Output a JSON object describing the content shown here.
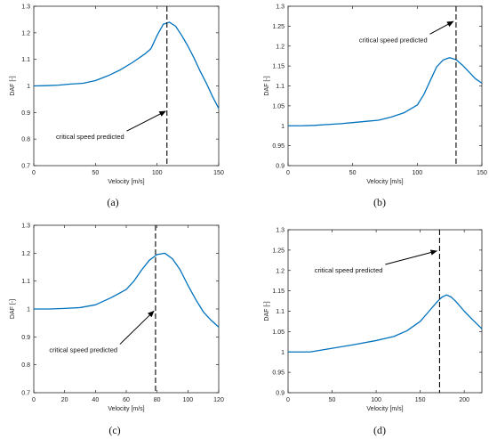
{
  "chart_data": [
    {
      "type": "line",
      "panel_label": "(a)",
      "xlabel": "Velocity [m/s]",
      "ylabel": "DAF [-]",
      "xlim": [
        0,
        150
      ],
      "ylim": [
        0.7,
        1.3
      ],
      "xticks": [
        0,
        50,
        100,
        150
      ],
      "yticks": [
        0.7,
        0.8,
        0.9,
        1.0,
        1.1,
        1.2,
        1.3
      ],
      "ytick_labels": [
        "0.7",
        "0.8",
        "0.9",
        "1",
        "1.1",
        "1.2",
        "1.3"
      ],
      "x": [
        0,
        10,
        20,
        30,
        40,
        50,
        60,
        70,
        80,
        90,
        95,
        100,
        105,
        110,
        115,
        120,
        125,
        130,
        135,
        140,
        145,
        150
      ],
      "y": [
        1.0,
        1.001,
        1.003,
        1.007,
        1.01,
        1.02,
        1.038,
        1.06,
        1.088,
        1.12,
        1.14,
        1.19,
        1.232,
        1.24,
        1.225,
        1.19,
        1.15,
        1.105,
        1.055,
        1.01,
        0.96,
        0.915
      ],
      "critical_speed": 108,
      "annotation": {
        "text": "critical speed predicted",
        "text_x": 18,
        "text_y": 0.8,
        "tip_x": 107,
        "tip_y": 0.905
      }
    },
    {
      "type": "line",
      "panel_label": "(b)",
      "xlabel": "Velocity [m/s]",
      "ylabel": "DAF [-]",
      "xlim": [
        0,
        150
      ],
      "ylim": [
        0.9,
        1.3
      ],
      "xticks": [
        0,
        50,
        100,
        150
      ],
      "yticks": [
        0.9,
        0.95,
        1.0,
        1.05,
        1.1,
        1.15,
        1.2,
        1.25,
        1.3
      ],
      "ytick_labels": [
        "0.9",
        "0.95",
        "1",
        "1.05",
        "1.1",
        "1.15",
        "1.2",
        "1.25",
        "1.3"
      ],
      "x": [
        0,
        10,
        20,
        30,
        40,
        50,
        60,
        70,
        80,
        90,
        100,
        105,
        110,
        115,
        120,
        125,
        130,
        135,
        140,
        145,
        150
      ],
      "y": [
        1.0,
        1.0,
        1.001,
        1.003,
        1.005,
        1.008,
        1.011,
        1.014,
        1.022,
        1.033,
        1.052,
        1.078,
        1.113,
        1.148,
        1.165,
        1.171,
        1.166,
        1.152,
        1.135,
        1.118,
        1.107
      ],
      "critical_speed": 130,
      "annotation": {
        "text": "critical speed predicted",
        "text_x": 55,
        "text_y": 1.21,
        "tip_x": 128,
        "tip_y": 1.262
      }
    },
    {
      "type": "line",
      "panel_label": "(c)",
      "xlabel": "Velocity [m/s]",
      "ylabel": "DAF [-]",
      "xlim": [
        0,
        120
      ],
      "ylim": [
        0.7,
        1.3
      ],
      "xticks": [
        0,
        20,
        40,
        60,
        80,
        100,
        120
      ],
      "yticks": [
        0.7,
        0.8,
        0.9,
        1.0,
        1.1,
        1.2,
        1.3
      ],
      "ytick_labels": [
        "0.7",
        "0.8",
        "0.9",
        "1",
        "1.1",
        "1.2",
        "1.3"
      ],
      "x": [
        0,
        10,
        20,
        30,
        40,
        50,
        60,
        65,
        70,
        75,
        80,
        85,
        90,
        95,
        100,
        105,
        110,
        115,
        120
      ],
      "y": [
        1.0,
        1.0,
        1.002,
        1.005,
        1.015,
        1.04,
        1.07,
        1.1,
        1.14,
        1.175,
        1.195,
        1.2,
        1.18,
        1.14,
        1.085,
        1.035,
        0.99,
        0.96,
        0.935
      ],
      "critical_speed": 79,
      "annotation": {
        "text": "critical speed predicted",
        "text_x": 10,
        "text_y": 0.845,
        "tip_x": 78,
        "tip_y": 0.993
      }
    },
    {
      "type": "line",
      "panel_label": "(d)",
      "xlabel": "Velocity [m/s]",
      "ylabel": "DAF [-]",
      "xlim": [
        0,
        220
      ],
      "ylim": [
        0.9,
        1.3
      ],
      "xticks": [
        0,
        50,
        100,
        150,
        200
      ],
      "yticks": [
        0.9,
        0.95,
        1.0,
        1.05,
        1.1,
        1.15,
        1.2,
        1.25,
        1.3
      ],
      "ytick_labels": [
        "0.9",
        "0.95",
        "1",
        "1.05",
        "1.1",
        "1.15",
        "1.2",
        "1.25",
        "1.3"
      ],
      "x": [
        0,
        25,
        50,
        75,
        100,
        120,
        135,
        150,
        160,
        170,
        175,
        180,
        185,
        190,
        200,
        210,
        220
      ],
      "y": [
        1.0,
        1.0,
        1.009,
        1.018,
        1.028,
        1.038,
        1.052,
        1.075,
        1.1,
        1.125,
        1.135,
        1.14,
        1.135,
        1.125,
        1.1,
        1.078,
        1.057
      ],
      "critical_speed": 172,
      "annotation": {
        "text": "critical speed predicted",
        "text_x": 30,
        "text_y": 1.195,
        "tip_x": 169,
        "tip_y": 1.248
      }
    }
  ]
}
